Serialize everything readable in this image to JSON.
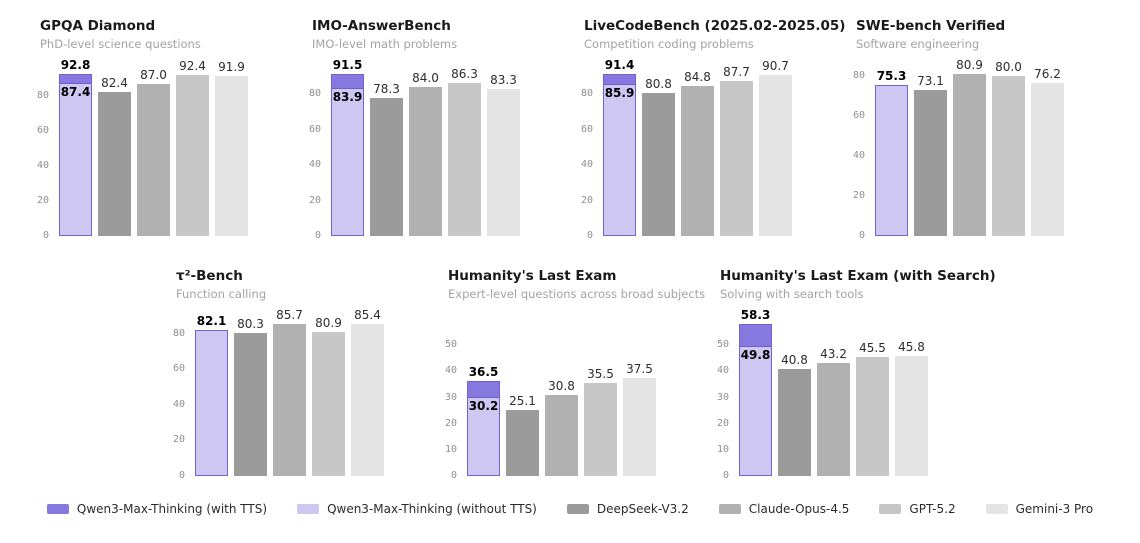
{
  "colors": {
    "qwen_with_tts": "#8678de",
    "qwen_border": "#7163cf",
    "qwen_without_tts": "#cdc7f2",
    "model_grays": [
      "#9b9b9b",
      "#b1b1b1",
      "#c6c6c6",
      "#e4e4e4"
    ],
    "tick_label": "#8f8f8f",
    "value_label": "#2d2d2d",
    "qwen_value_label": "#000000",
    "title": "#1a1a1a",
    "subtitle": "#a3a3a3"
  },
  "legend": {
    "items": [
      {
        "label": "Qwen3-Max-Thinking (with TTS)",
        "color": "#8678de"
      },
      {
        "label": "Qwen3-Max-Thinking (without TTS)",
        "color": "#cdc7f2"
      },
      {
        "label": "DeepSeek-V3.2",
        "color": "#9b9b9b"
      },
      {
        "label": "Claude-Opus-4.5",
        "color": "#b1b1b1"
      },
      {
        "label": "GPT-5.2",
        "color": "#c6c6c6"
      },
      {
        "label": "Gemini-3 Pro",
        "color": "#e4e4e4"
      }
    ]
  },
  "chart_data": [
    {
      "type": "bar",
      "title": "GPQA Diamond",
      "subtitle": "PhD-level science questions",
      "ylim": [
        0,
        97.4
      ],
      "yticks": [
        0,
        20,
        40,
        60,
        80
      ],
      "grid": false,
      "legend_position": "bottom-shared",
      "series": [
        {
          "name": "Qwen3-Max-Thinking (with TTS)",
          "value": 92.8
        },
        {
          "name": "Qwen3-Max-Thinking (without TTS)",
          "value": 87.4
        },
        {
          "name": "DeepSeek-V3.2",
          "value": 82.4
        },
        {
          "name": "Claude-Opus-4.5",
          "value": 87.0
        },
        {
          "name": "GPT-5.2",
          "value": 92.4
        },
        {
          "name": "Gemini-3 Pro",
          "value": 91.9
        }
      ]
    },
    {
      "type": "bar",
      "title": "IMO-AnswerBench",
      "subtitle": "IMO-level math problems",
      "ylim": [
        0,
        96.1
      ],
      "yticks": [
        0,
        20,
        40,
        60,
        80
      ],
      "grid": false,
      "series": [
        {
          "name": "Qwen3-Max-Thinking (with TTS)",
          "value": 91.5
        },
        {
          "name": "Qwen3-Max-Thinking (without TTS)",
          "value": 83.9
        },
        {
          "name": "DeepSeek-V3.2",
          "value": 78.3
        },
        {
          "name": "Claude-Opus-4.5",
          "value": 84.0
        },
        {
          "name": "GPT-5.2",
          "value": 86.3
        },
        {
          "name": "Gemini-3 Pro",
          "value": 83.3
        }
      ]
    },
    {
      "type": "bar",
      "title": "LiveCodeBench (2025.02-2025.05)",
      "subtitle": "Competition coding problems",
      "ylim": [
        0,
        96.0
      ],
      "yticks": [
        0,
        20,
        40,
        60,
        80
      ],
      "grid": false,
      "series": [
        {
          "name": "Qwen3-Max-Thinking (with TTS)",
          "value": 91.4
        },
        {
          "name": "Qwen3-Max-Thinking (without TTS)",
          "value": 85.9
        },
        {
          "name": "DeepSeek-V3.2",
          "value": 80.8
        },
        {
          "name": "Claude-Opus-4.5",
          "value": 84.8
        },
        {
          "name": "GPT-5.2",
          "value": 87.7
        },
        {
          "name": "Gemini-3 Pro",
          "value": 90.7
        }
      ]
    },
    {
      "type": "bar",
      "title": "SWE-bench Verified",
      "subtitle": "Software engineering",
      "ylim": [
        0,
        84.9
      ],
      "yticks": [
        0,
        20,
        40,
        60,
        80
      ],
      "grid": false,
      "series": [
        {
          "name": "Qwen3-Max-Thinking (with TTS)",
          "value": null
        },
        {
          "name": "Qwen3-Max-Thinking (without TTS)",
          "value": 75.3
        },
        {
          "name": "DeepSeek-V3.2",
          "value": 73.1
        },
        {
          "name": "Claude-Opus-4.5",
          "value": 80.9
        },
        {
          "name": "GPT-5.2",
          "value": 80.0
        },
        {
          "name": "Gemini-3 Pro",
          "value": 76.2
        }
      ]
    },
    {
      "type": "bar",
      "title": "τ²-Bench",
      "subtitle": "Function calling",
      "ylim": [
        0,
        90.0
      ],
      "yticks": [
        0,
        20,
        40,
        60,
        80
      ],
      "grid": false,
      "series": [
        {
          "name": "Qwen3-Max-Thinking (with TTS)",
          "value": null
        },
        {
          "name": "Qwen3-Max-Thinking (without TTS)",
          "value": 82.1
        },
        {
          "name": "DeepSeek-V3.2",
          "value": 80.3
        },
        {
          "name": "Claude-Opus-4.5",
          "value": 85.7
        },
        {
          "name": "GPT-5.2",
          "value": 80.9
        },
        {
          "name": "Gemini-3 Pro",
          "value": 85.4
        }
      ]
    },
    {
      "type": "bar",
      "title": "Humanity's Last Exam",
      "subtitle": "Expert-level questions across broad subjects",
      "ylim": [
        0,
        61.2
      ],
      "yticks": [
        0,
        10,
        20,
        30,
        40,
        50
      ],
      "grid": false,
      "series": [
        {
          "name": "Qwen3-Max-Thinking (with TTS)",
          "value": 36.5
        },
        {
          "name": "Qwen3-Max-Thinking (without TTS)",
          "value": 30.2
        },
        {
          "name": "DeepSeek-V3.2",
          "value": 25.1
        },
        {
          "name": "Claude-Opus-4.5",
          "value": 30.8
        },
        {
          "name": "GPT-5.2",
          "value": 35.5
        },
        {
          "name": "Gemini-3 Pro",
          "value": 37.5
        }
      ]
    },
    {
      "type": "bar",
      "title": "Humanity's Last Exam (with Search)",
      "subtitle": "Solving with search tools",
      "ylim": [
        0,
        61.2
      ],
      "yticks": [
        0,
        10,
        20,
        30,
        40,
        50
      ],
      "grid": false,
      "series": [
        {
          "name": "Qwen3-Max-Thinking (with TTS)",
          "value": 58.3
        },
        {
          "name": "Qwen3-Max-Thinking (without TTS)",
          "value": 49.8
        },
        {
          "name": "DeepSeek-V3.2",
          "value": 40.8
        },
        {
          "name": "Claude-Opus-4.5",
          "value": 43.2
        },
        {
          "name": "GPT-5.2",
          "value": 45.5
        },
        {
          "name": "Gemini-3 Pro",
          "value": 45.8
        }
      ]
    }
  ]
}
